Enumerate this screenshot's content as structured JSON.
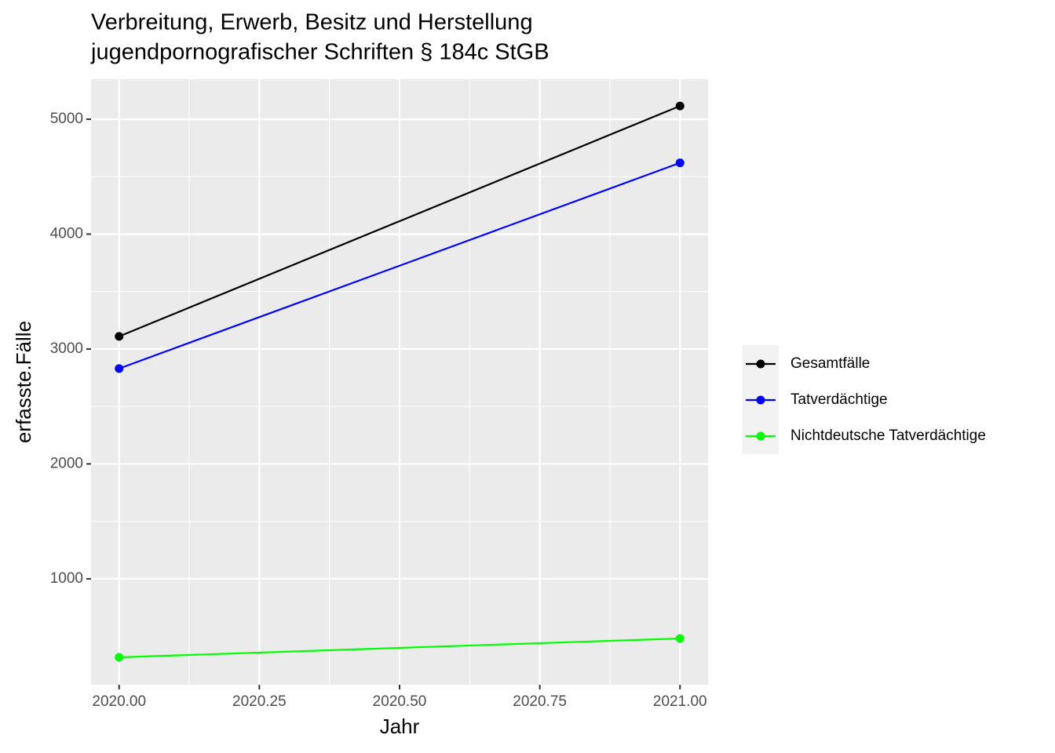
{
  "chart_data": {
    "type": "line",
    "title": [
      "Verbreitung, Erwerb, Besitz und Herstellung",
      "jugendpornografischer Schriften § 184c StGB"
    ],
    "x_label": "Jahr",
    "y_label": "erfasste.Fälle",
    "x": [
      2020,
      2021
    ],
    "series": [
      {
        "name": "Gesamtfälle",
        "color": "#000000",
        "values": [
          3110,
          5115
        ]
      },
      {
        "name": "Tatverdächtige",
        "color": "#0000ff",
        "values": [
          2830,
          4620
        ]
      },
      {
        "name": "Nichtdeutsche Tatverdächtige",
        "color": "#00ff00",
        "values": [
          317,
          481
        ]
      }
    ],
    "xlim": [
      2019.95,
      2021.05
    ],
    "xticks": [
      {
        "value": 2020,
        "label": "2020.00"
      },
      {
        "value": 2020.25,
        "label": "2020.25"
      },
      {
        "value": 2020.5,
        "label": "2020.50"
      },
      {
        "value": 2020.75,
        "label": "2020.75"
      },
      {
        "value": 2021,
        "label": "2021.00"
      }
    ],
    "ylim": [
      78,
      5348
    ],
    "yticks": [
      1000,
      2000,
      3000,
      4000,
      5000
    ],
    "grid": true,
    "legend": "right"
  }
}
